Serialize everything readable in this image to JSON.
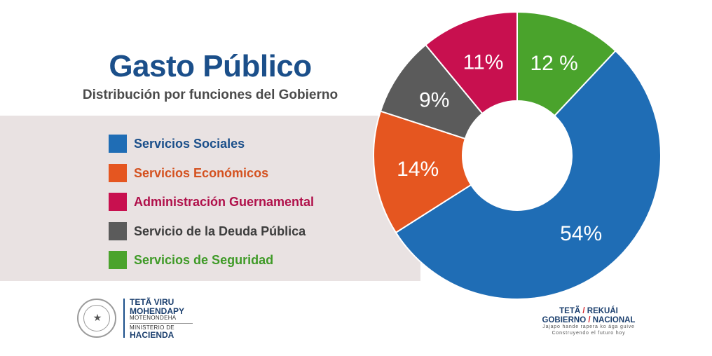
{
  "header": {
    "title": "Gasto Público",
    "subtitle": "Distribución  por funciones del Gobierno"
  },
  "chart_data": {
    "type": "pie",
    "style": "donut",
    "title": "Gasto Público",
    "subtitle": "Distribución por funciones del Gobierno",
    "legend_position": "left",
    "categories": [
      "Servicios Sociales",
      "Servicios Económicos",
      "Administración Guernamental",
      "Servicio de la Deuda Pública",
      "Servicios de Seguridad"
    ],
    "values": [
      54,
      14,
      11,
      9,
      12
    ],
    "value_labels": [
      "54%",
      "14%",
      "11%",
      "9%",
      "12 %"
    ],
    "colors": [
      "#1f6db5",
      "#e55620",
      "#c8104f",
      "#5b5b5b",
      "#4aa32c"
    ],
    "text_colors": [
      "#1b4f8a",
      "#d4511f",
      "#b0104a",
      "#3d3d3d",
      "#3f9a27"
    ]
  },
  "footer": {
    "ministry": {
      "line1": "TETÃ VIRU",
      "line2": "MOHENDAPY",
      "line3": "MOTENONDEHA",
      "line4": "MINISTERIO DE",
      "line5": "HACIENDA"
    },
    "government": {
      "word1": "TETÃ",
      "word2": "REKUÁI",
      "word3": "GOBIERNO",
      "word4": "NACIONAL",
      "tagline1": "Jajapo hande rapera ko ága guive",
      "tagline2": "Construyendo el futuro hoy"
    }
  }
}
